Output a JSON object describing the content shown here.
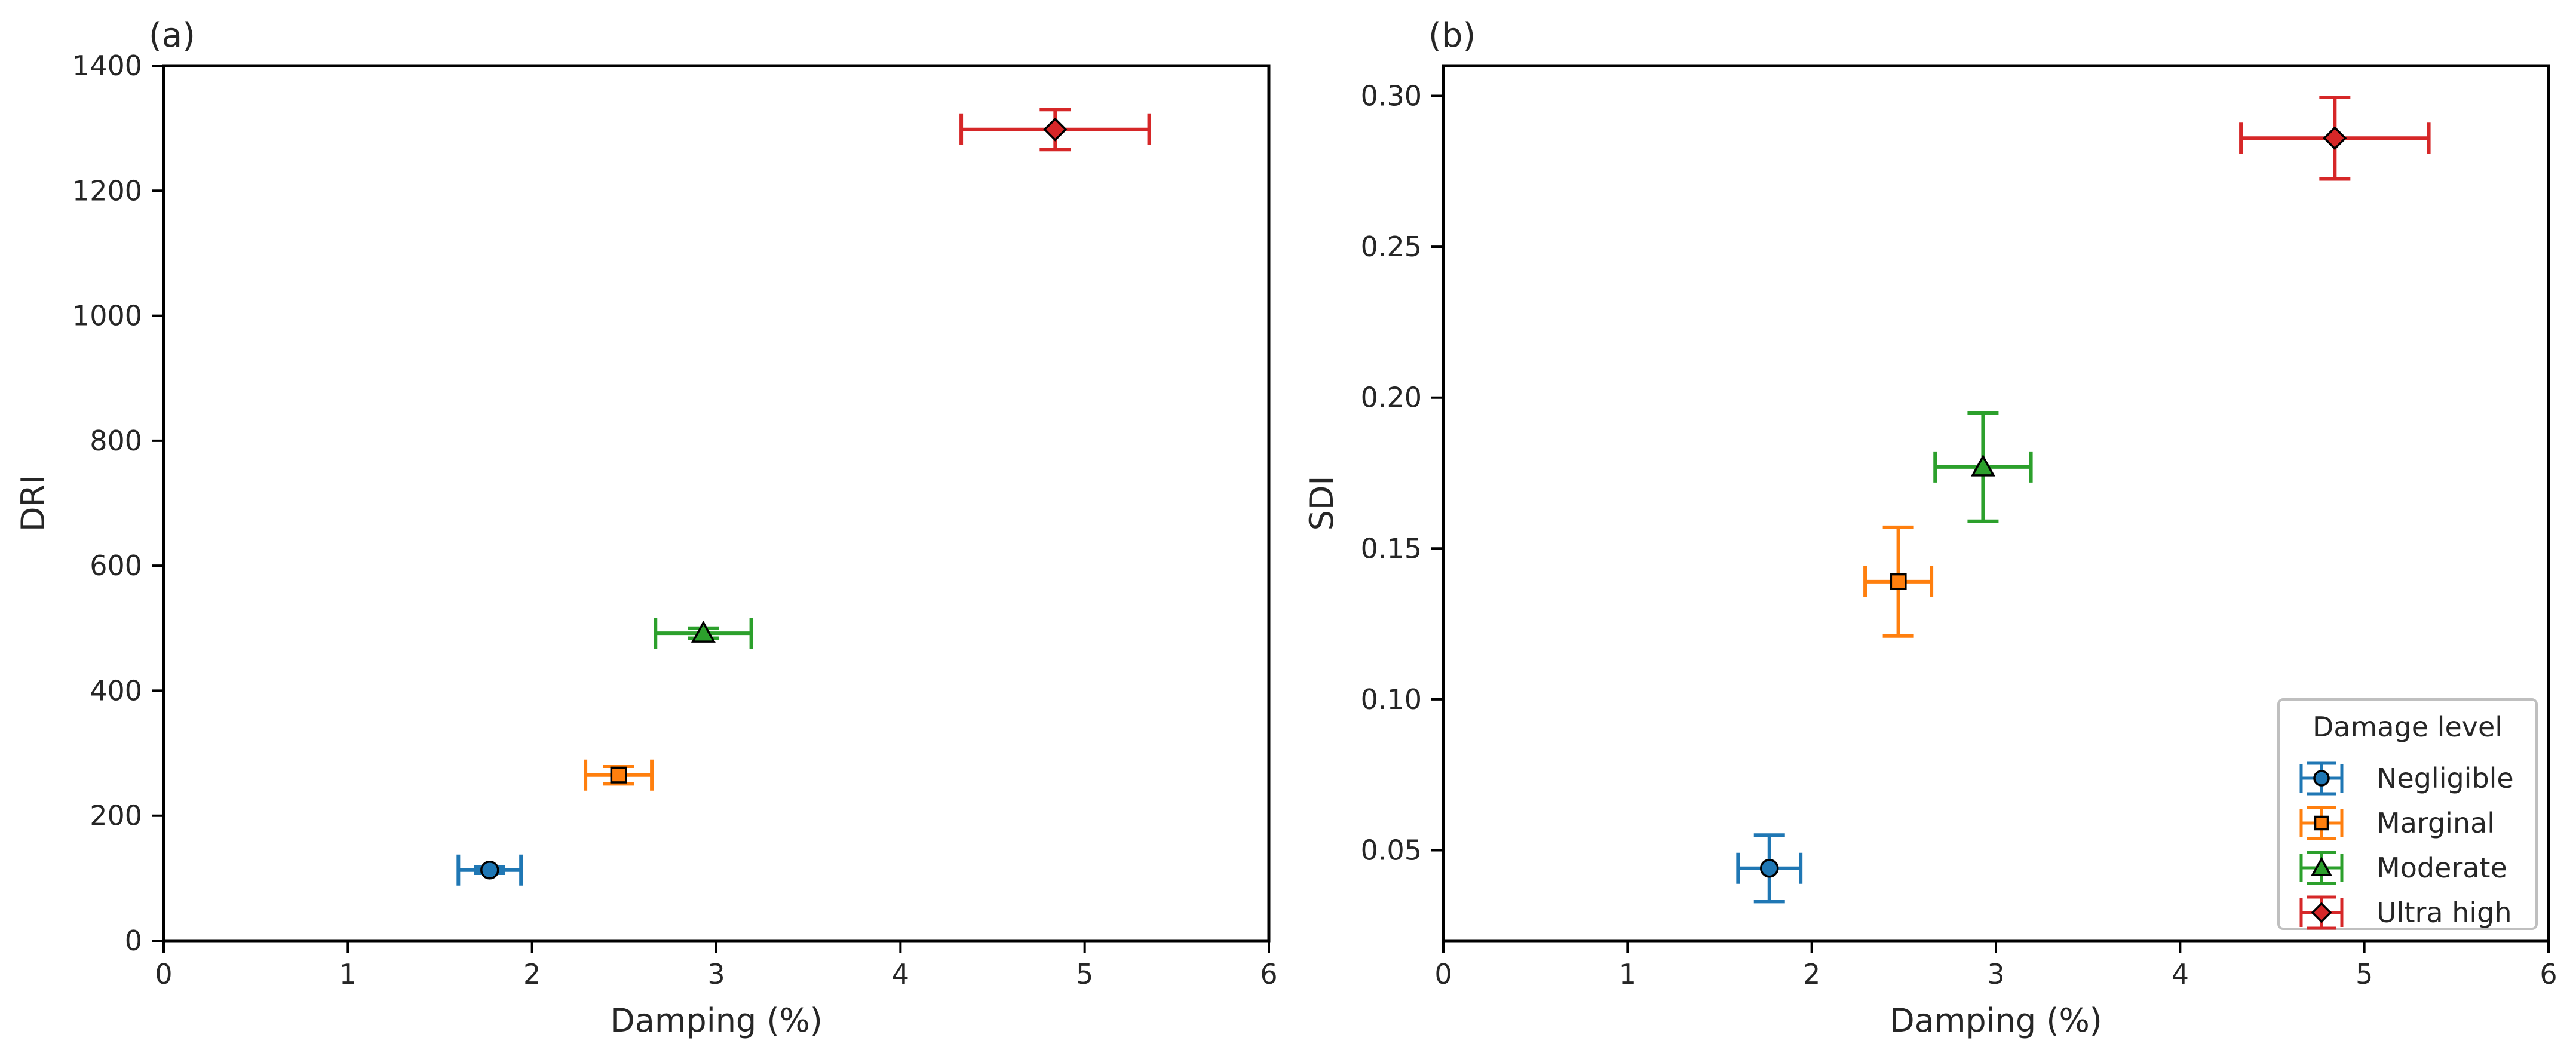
{
  "chart_data": [
    {
      "panel_label": "(a)",
      "type": "scatter",
      "xlabel": "Damping (%)",
      "ylabel": "DRI",
      "xlim": [
        0,
        6
      ],
      "ylim": [
        0,
        1400
      ],
      "x_ticks": [
        0,
        1,
        2,
        3,
        4,
        5,
        6
      ],
      "y_ticks": [
        0,
        200,
        400,
        600,
        800,
        1000,
        1200,
        1400
      ],
      "y_tick_labels": [
        "0",
        "200",
        "400",
        "600",
        "800",
        "1000",
        "1200",
        "1400"
      ],
      "grid": false,
      "legend": null,
      "series": [
        {
          "name": "Negligible",
          "marker": "circle",
          "color": "#1f77b4",
          "x": 1.77,
          "y": 113,
          "xerr": [
            0.17,
            0.17
          ],
          "yerr": [
            5,
            5
          ]
        },
        {
          "name": "Marginal",
          "marker": "square",
          "color": "#ff7f0e",
          "x": 2.47,
          "y": 265,
          "xerr": [
            0.18,
            0.18
          ],
          "yerr": [
            14,
            14
          ]
        },
        {
          "name": "Moderate",
          "marker": "triangle",
          "color": "#2ca02c",
          "x": 2.93,
          "y": 492,
          "xerr": [
            0.26,
            0.26
          ],
          "yerr": [
            8,
            8
          ]
        },
        {
          "name": "Ultra high",
          "marker": "diamond",
          "color": "#d62728",
          "x": 4.84,
          "y": 1298,
          "xerr": [
            0.51,
            0.51
          ],
          "yerr": [
            32,
            32
          ]
        }
      ]
    },
    {
      "panel_label": "(b)",
      "type": "scatter",
      "xlabel": "Damping (%)",
      "ylabel": "SDI",
      "xlim": [
        0,
        6
      ],
      "ylim": [
        0.02,
        0.31
      ],
      "x_ticks": [
        0,
        1,
        2,
        3,
        4,
        5,
        6
      ],
      "y_ticks": [
        0.05,
        0.1,
        0.15,
        0.2,
        0.25,
        0.3
      ],
      "y_tick_labels": [
        "0.05",
        "0.10",
        "0.15",
        "0.20",
        "0.25",
        "0.30"
      ],
      "grid": false,
      "legend": {
        "title": "Damage level",
        "placement": "bottom-right"
      },
      "series": [
        {
          "name": "Negligible",
          "marker": "circle",
          "color": "#1f77b4",
          "x": 1.77,
          "y": 0.044,
          "xerr": [
            0.17,
            0.17
          ],
          "yerr": [
            0.011,
            0.011
          ]
        },
        {
          "name": "Marginal",
          "marker": "square",
          "color": "#ff7f0e",
          "x": 2.47,
          "y": 0.139,
          "xerr": [
            0.18,
            0.18
          ],
          "yerr": [
            0.018,
            0.018
          ]
        },
        {
          "name": "Moderate",
          "marker": "triangle",
          "color": "#2ca02c",
          "x": 2.93,
          "y": 0.177,
          "xerr": [
            0.26,
            0.26
          ],
          "yerr": [
            0.018,
            0.018
          ]
        },
        {
          "name": "Ultra high",
          "marker": "diamond",
          "color": "#d62728",
          "x": 4.84,
          "y": 0.286,
          "xerr": [
            0.51,
            0.51
          ],
          "yerr": [
            0.0135,
            0.0135
          ]
        }
      ]
    }
  ]
}
